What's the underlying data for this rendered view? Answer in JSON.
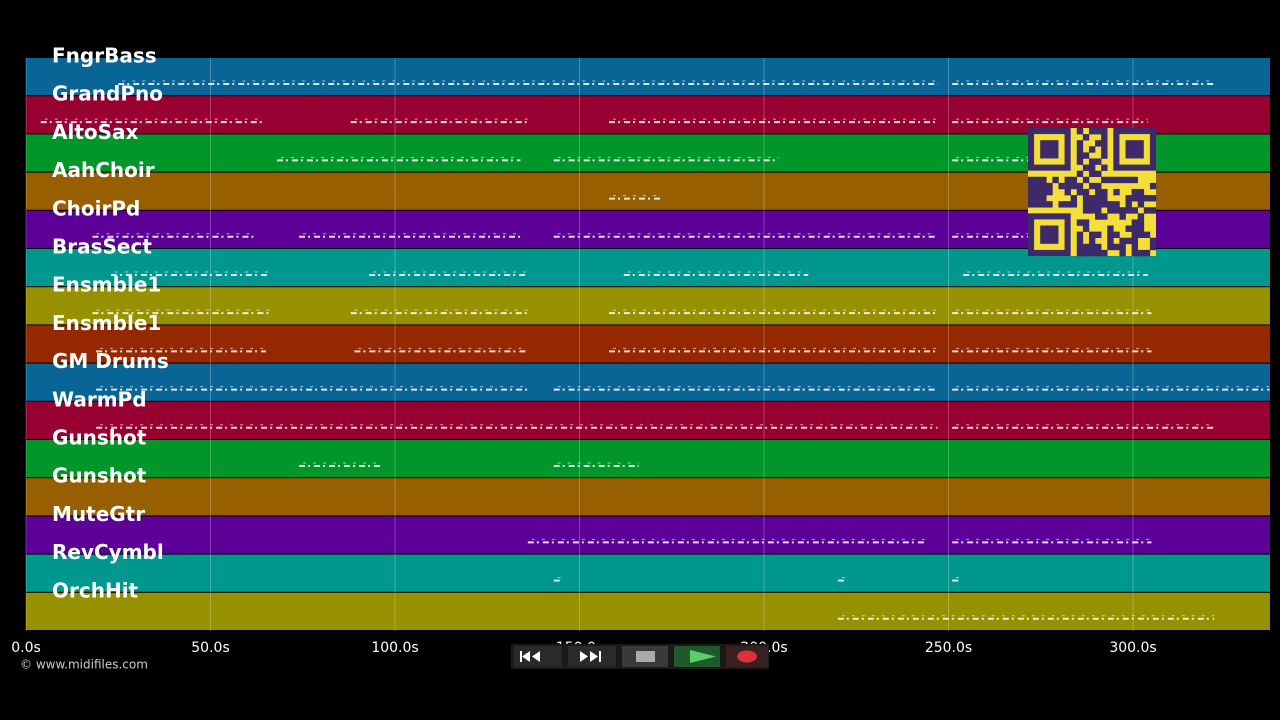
{
  "tracks": [
    "FngrBass",
    "GrandPno",
    "AltoSax",
    "AahChoir",
    "ChoirPd",
    "BrasSect",
    "Ensmble1",
    "Ensmble1",
    "GM Drums",
    "WarmPd",
    "Gunshot",
    "Gunshot",
    "MuteGtr",
    "RevCymbl",
    "OrchHit"
  ],
  "time_axis": {
    "ticks": [
      "0.0s",
      "50.0s",
      "100.0s",
      "150.0s",
      "200.0s",
      "250.0s",
      "300.0s"
    ]
  },
  "footer": {
    "copyright": "© www.midifiles.com"
  }
}
